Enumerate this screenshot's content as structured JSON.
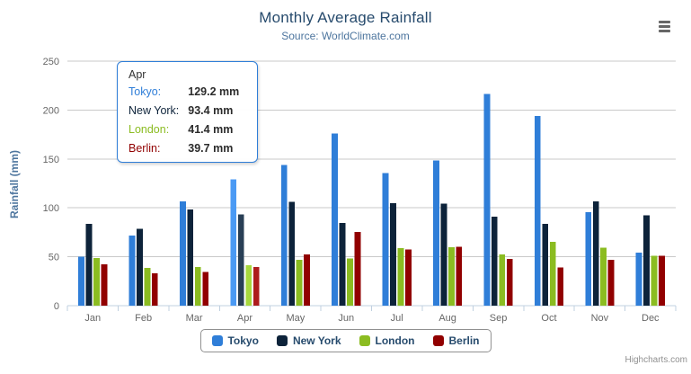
{
  "chart_data": {
    "type": "bar",
    "title": "Monthly Average Rainfall",
    "subtitle": "Source: WorldClimate.com",
    "xlabel": "",
    "ylabel": "Rainfall (mm)",
    "categories": [
      "Jan",
      "Feb",
      "Mar",
      "Apr",
      "May",
      "Jun",
      "Jul",
      "Aug",
      "Sep",
      "Oct",
      "Nov",
      "Dec"
    ],
    "series": [
      {
        "name": "Tokyo",
        "color": "#2f7ed8",
        "values": [
          49.9,
          71.5,
          106.4,
          129.2,
          144.0,
          176.0,
          135.6,
          148.5,
          216.4,
          194.1,
          95.6,
          54.4
        ]
      },
      {
        "name": "New York",
        "color": "#0d233a",
        "values": [
          83.6,
          78.8,
          98.5,
          93.4,
          106.0,
          84.5,
          105.0,
          104.3,
          91.2,
          83.5,
          106.6,
          92.3
        ]
      },
      {
        "name": "London",
        "color": "#8bbc21",
        "values": [
          48.9,
          38.8,
          39.3,
          41.4,
          47.0,
          48.3,
          59.0,
          59.6,
          52.4,
          65.2,
          59.3,
          51.2
        ]
      },
      {
        "name": "Berlin",
        "color": "#910000",
        "values": [
          42.4,
          33.2,
          34.5,
          39.7,
          52.6,
          75.5,
          57.4,
          60.4,
          47.6,
          39.1,
          46.8,
          51.1
        ]
      }
    ],
    "ylim": [
      0,
      250
    ],
    "yticks": [
      0,
      50,
      100,
      150,
      200,
      250
    ],
    "grid": true,
    "legend_position": "bottom-center"
  },
  "tooltip": {
    "category": "Apr",
    "point_index": 3,
    "border_color": "#2f7ed8",
    "rows": [
      {
        "label": "Tokyo:",
        "value": "129.2 mm",
        "color": "#2f7ed8"
      },
      {
        "label": "New York:",
        "value": "93.4 mm",
        "color": "#0d233a"
      },
      {
        "label": "London:",
        "value": "41.4 mm",
        "color": "#8bbc21"
      },
      {
        "label": "Berlin:",
        "value": "39.7 mm",
        "color": "#910000"
      }
    ]
  },
  "credits": "Highcharts.com",
  "colors": {
    "title": "#274b6d",
    "subtitle": "#4d759e",
    "axis_label": "#666666",
    "gridline": "#c9c9c9",
    "axis_line": "#c0d0e0",
    "legend_border": "#909090",
    "legend_text": "#274b6d",
    "credits": "#909090"
  }
}
